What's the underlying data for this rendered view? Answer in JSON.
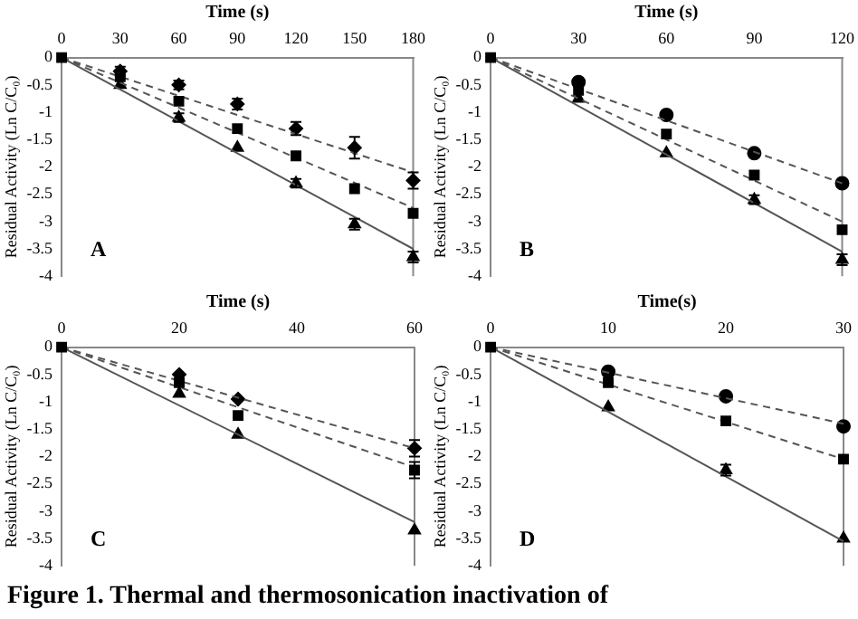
{
  "chart_data": [
    {
      "type": "scatter",
      "xlabel": "Time (s)",
      "ylabel": "Residual Activity (Ln C/C₀)",
      "annotations": [
        "A"
      ],
      "xlim": [
        0,
        180
      ],
      "xticks": [
        0,
        30,
        60,
        90,
        120,
        150,
        180
      ],
      "ylim": [
        -4,
        0
      ],
      "yticks": [
        0,
        -0.5,
        -1,
        -1.5,
        -2,
        -2.5,
        -3,
        -3.5,
        -4
      ],
      "series": [
        {
          "type": "line",
          "color": "#555555",
          "line_style": "dashed",
          "x": [
            0,
            180
          ],
          "values": [
            0,
            -2.1
          ]
        },
        {
          "type": "line",
          "color": "#555555",
          "line_style": "dashed",
          "x": [
            0,
            180
          ],
          "values": [
            0,
            -2.75
          ]
        },
        {
          "type": "line",
          "color": "#555555",
          "line_style": "solid",
          "x": [
            0,
            180
          ],
          "values": [
            0,
            -3.5
          ]
        },
        {
          "type": "scatter",
          "color": "#000000",
          "marker": "diamond",
          "x": [
            30,
            60,
            90,
            120,
            150,
            180
          ],
          "values": [
            -0.25,
            -0.5,
            -0.85,
            -1.3,
            -1.65,
            -2.25
          ],
          "errors": [
            0.08,
            0.08,
            0.1,
            0.12,
            0.2,
            0.15
          ]
        },
        {
          "type": "scatter",
          "color": "#000000",
          "marker": "square",
          "x": [
            0,
            30,
            60,
            90,
            120,
            150,
            180
          ],
          "values": [
            0,
            -0.35,
            -0.8,
            -1.3,
            -1.8,
            -2.4,
            -2.85
          ]
        },
        {
          "type": "scatter",
          "color": "#000000",
          "marker": "triangle",
          "x": [
            30,
            60,
            90,
            120,
            150,
            180
          ],
          "values": [
            -0.5,
            -1.1,
            -1.65,
            -2.3,
            -3.05,
            -3.65
          ],
          "errors": [
            null,
            0.08,
            null,
            0.08,
            0.1,
            0.1
          ]
        }
      ]
    },
    {
      "type": "scatter",
      "xlabel": "Time (s)",
      "ylabel": "Residual Activity (Ln C/C₀)",
      "annotations": [
        "B"
      ],
      "xlim": [
        0,
        120
      ],
      "xticks": [
        0,
        30,
        60,
        90,
        120
      ],
      "ylim": [
        -4,
        0
      ],
      "yticks": [
        0,
        -0.5,
        -1,
        -1.5,
        -2,
        -2.5,
        -3,
        -3.5,
        -4
      ],
      "series": [
        {
          "type": "line",
          "color": "#555555",
          "line_style": "dashed",
          "x": [
            0,
            120
          ],
          "values": [
            0,
            -2.3
          ]
        },
        {
          "type": "line",
          "color": "#555555",
          "line_style": "dashed",
          "x": [
            0,
            120
          ],
          "values": [
            0,
            -3.0
          ]
        },
        {
          "type": "line",
          "color": "#555555",
          "line_style": "solid",
          "x": [
            0,
            120
          ],
          "values": [
            0,
            -3.55
          ]
        },
        {
          "type": "scatter",
          "color": "#000000",
          "marker": "circle",
          "x": [
            30,
            60,
            90,
            120
          ],
          "values": [
            -0.45,
            -1.05,
            -1.75,
            -2.3
          ]
        },
        {
          "type": "scatter",
          "color": "#000000",
          "marker": "square",
          "x": [
            0,
            30,
            60,
            90,
            120
          ],
          "values": [
            0,
            -0.6,
            -1.4,
            -2.15,
            -3.15
          ]
        },
        {
          "type": "scatter",
          "color": "#000000",
          "marker": "triangle",
          "x": [
            30,
            60,
            90,
            120
          ],
          "values": [
            -0.75,
            -1.75,
            -2.6,
            -3.7
          ],
          "errors": [
            null,
            null,
            0.08,
            0.1
          ]
        }
      ]
    },
    {
      "type": "scatter",
      "xlabel": "Time (s)",
      "ylabel": "Residual Activity (Ln C/C₀)",
      "annotations": [
        "C"
      ],
      "xlim": [
        0,
        60
      ],
      "xticks": [
        0,
        20,
        40,
        60
      ],
      "ylim": [
        -4,
        0
      ],
      "yticks": [
        0,
        -0.5,
        -1,
        -1.5,
        -2,
        -2.5,
        -3,
        -3.5,
        -4
      ],
      "series": [
        {
          "type": "line",
          "color": "#555555",
          "line_style": "dashed",
          "x": [
            0,
            60
          ],
          "values": [
            0,
            -1.85
          ]
        },
        {
          "type": "line",
          "color": "#555555",
          "line_style": "dashed",
          "x": [
            0,
            60
          ],
          "values": [
            0,
            -2.2
          ]
        },
        {
          "type": "line",
          "color": "#555555",
          "line_style": "solid",
          "x": [
            0,
            60
          ],
          "values": [
            0,
            -3.2
          ]
        },
        {
          "type": "scatter",
          "color": "#000000",
          "marker": "diamond",
          "x": [
            20,
            30,
            60
          ],
          "values": [
            -0.5,
            -0.95,
            -1.85
          ],
          "errors": [
            null,
            null,
            0.15
          ]
        },
        {
          "type": "scatter",
          "color": "#000000",
          "marker": "square",
          "x": [
            0,
            20,
            30,
            60
          ],
          "values": [
            0,
            -0.65,
            -1.25,
            -2.25
          ],
          "errors": [
            null,
            null,
            null,
            0.15
          ]
        },
        {
          "type": "scatter",
          "color": "#000000",
          "marker": "triangle",
          "x": [
            20,
            30,
            60
          ],
          "values": [
            -0.85,
            -1.6,
            -3.35
          ]
        }
      ]
    },
    {
      "type": "scatter",
      "xlabel": "Time(s)",
      "ylabel": "Residual Activity (Ln C/C₀)",
      "annotations": [
        "D"
      ],
      "xlim": [
        0,
        30
      ],
      "xticks": [
        0,
        10,
        20,
        30
      ],
      "ylim": [
        -4,
        0
      ],
      "yticks": [
        0,
        -0.5,
        -1,
        -1.5,
        -2,
        -2.5,
        -3,
        -3.5,
        -4
      ],
      "series": [
        {
          "type": "line",
          "color": "#555555",
          "line_style": "dashed",
          "x": [
            0,
            30
          ],
          "values": [
            0,
            -1.4
          ]
        },
        {
          "type": "line",
          "color": "#555555",
          "line_style": "dashed",
          "x": [
            0,
            30
          ],
          "values": [
            0,
            -2.05
          ]
        },
        {
          "type": "line",
          "color": "#555555",
          "line_style": "solid",
          "x": [
            0,
            30
          ],
          "values": [
            0,
            -3.55
          ]
        },
        {
          "type": "scatter",
          "color": "#000000",
          "marker": "circle",
          "x": [
            10,
            20,
            30
          ],
          "values": [
            -0.45,
            -0.9,
            -1.45
          ]
        },
        {
          "type": "scatter",
          "color": "#000000",
          "marker": "square",
          "x": [
            0,
            10,
            20,
            30
          ],
          "values": [
            0,
            -0.65,
            -1.35,
            -2.05
          ]
        },
        {
          "type": "scatter",
          "color": "#000000",
          "marker": "triangle",
          "x": [
            10,
            20,
            30
          ],
          "values": [
            -1.1,
            -2.25,
            -3.5
          ],
          "errors": [
            null,
            0.1,
            null
          ]
        }
      ]
    },
    {
      "type": "other",
      "annotations": [
        "Figure 1. Thermal and thermosonication inactivation of"
      ]
    }
  ]
}
